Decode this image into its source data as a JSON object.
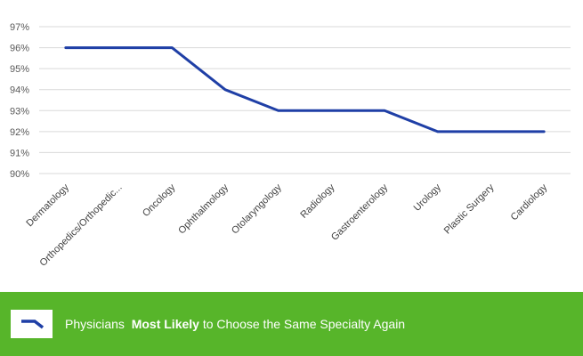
{
  "chart_data": {
    "type": "line",
    "categories": [
      "Dermatology",
      "Orthopedics/Orthopedic...",
      "Oncology",
      "Ophthalmology",
      "Otolaryngology",
      "Radiology",
      "Gastroenterology",
      "Urology",
      "Plastic Surgery",
      "Cardiology"
    ],
    "series": [
      {
        "name": "Physicians Most Likely to Choose the Same Specialty Again",
        "values": [
          96,
          96,
          96,
          94,
          93,
          93,
          93,
          92,
          92,
          92
        ]
      }
    ],
    "ylim": [
      90,
      97
    ],
    "y_ticks": [
      "90%",
      "91%",
      "92%",
      "93%",
      "94%",
      "95%",
      "96%",
      "97%"
    ],
    "grid": true,
    "line_color": "#1f3fa6",
    "legend_position": "bottom"
  },
  "legend": {
    "prefix": "Physicians",
    "emphasis": "Most Likely",
    "suffix": "to Choose the Same Specialty Again",
    "background_color": "#57b52a"
  }
}
